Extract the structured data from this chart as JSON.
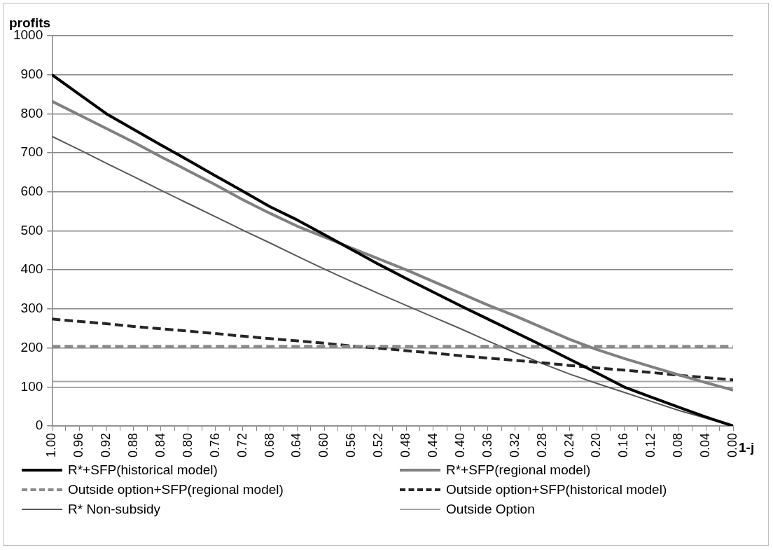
{
  "chart_data": {
    "type": "line",
    "xlabel": "1-j",
    "ylabel": "profits",
    "x": [
      1.0,
      0.96,
      0.92,
      0.88,
      0.84,
      0.8,
      0.76,
      0.72,
      0.68,
      0.64,
      0.6,
      0.56,
      0.52,
      0.48,
      0.44,
      0.4,
      0.36,
      0.32,
      0.28,
      0.24,
      0.2,
      0.16,
      0.12,
      0.08,
      0.04,
      0.0
    ],
    "series": [
      {
        "name": "R*+SFP(historical model)",
        "color": "#000000",
        "line_style": "solid",
        "values": [
          900,
          850,
          800,
          760,
          720,
          681,
          641,
          602,
          562,
          528,
          490,
          452,
          414,
          378,
          343,
          308,
          274,
          240,
          206,
          171,
          136,
          100,
          74,
          48,
          23,
          0
        ]
      },
      {
        "name": "R*+SFP(regional model)",
        "color": "#808080",
        "line_style": "solid",
        "values": [
          832,
          797,
          762,
          727,
          690,
          654,
          618,
          580,
          545,
          512,
          484,
          456,
          428,
          400,
          370,
          340,
          310,
          282,
          252,
          222,
          196,
          173,
          152,
          131,
          111,
          92
        ]
      },
      {
        "name": "Outside option+SFP(regional model)",
        "color": "#8c8c8c",
        "line_style": "dashed",
        "values": [
          204,
          204,
          204,
          204,
          204,
          204,
          204,
          204,
          204,
          204,
          204,
          204,
          204,
          204,
          204,
          204,
          204,
          204,
          204,
          204,
          204,
          204,
          204,
          204,
          204,
          204
        ]
      },
      {
        "name": "Outside option+SFP(historical model)",
        "color": "#262626",
        "line_style": "dashed",
        "values": [
          274,
          268,
          262,
          255,
          249,
          243,
          237,
          230,
          224,
          218,
          212,
          205,
          199,
          193,
          187,
          180,
          174,
          168,
          162,
          155,
          149,
          143,
          137,
          130,
          124,
          118
        ]
      },
      {
        "name": "R* Non-subsidy",
        "color": "#595959",
        "line_style": "solid",
        "values": [
          742,
          708,
          673,
          639,
          604,
          570,
          536,
          502,
          469,
          435,
          402,
          370,
          339,
          309,
          279,
          249,
          218,
          188,
          160,
          133,
          109,
          86,
          63,
          40,
          20,
          0
        ]
      },
      {
        "name": "Outside Option",
        "color": "#a6a6a6",
        "line_style": "solid",
        "values": [
          114,
          114,
          114,
          114,
          114,
          114,
          114,
          114,
          114,
          114,
          114,
          114,
          114,
          114,
          114,
          114,
          114,
          114,
          114,
          114,
          114,
          114,
          114,
          114,
          114,
          114
        ]
      }
    ],
    "xlim": [
      1,
      0
    ],
    "xticks": [
      {
        "value": 1,
        "label": "1.00"
      },
      {
        "value": 0.98,
        "label": null
      },
      {
        "value": 0.96,
        "label": "0.96"
      },
      {
        "value": 0.94,
        "label": null
      },
      {
        "value": 0.92,
        "label": "0.92"
      },
      {
        "value": 0.9,
        "label": null
      },
      {
        "value": 0.88,
        "label": "0.88"
      },
      {
        "value": 0.86,
        "label": null
      },
      {
        "value": 0.84,
        "label": "0.84"
      },
      {
        "value": 0.82,
        "label": null
      },
      {
        "value": 0.8,
        "label": "0.80"
      },
      {
        "value": 0.78,
        "label": null
      },
      {
        "value": 0.76,
        "label": "0.76"
      },
      {
        "value": 0.74,
        "label": null
      },
      {
        "value": 0.72,
        "label": "0.72"
      },
      {
        "value": 0.7,
        "label": null
      },
      {
        "value": 0.68,
        "label": "0.68"
      },
      {
        "value": 0.66,
        "label": null
      },
      {
        "value": 0.64,
        "label": "0.64"
      },
      {
        "value": 0.62,
        "label": null
      },
      {
        "value": 0.6,
        "label": "0.60"
      },
      {
        "value": 0.58,
        "label": null
      },
      {
        "value": 0.56,
        "label": "0.56"
      },
      {
        "value": 0.54,
        "label": null
      },
      {
        "value": 0.52,
        "label": "0.52"
      },
      {
        "value": 0.5,
        "label": null
      },
      {
        "value": 0.48,
        "label": "0.48"
      },
      {
        "value": 0.46,
        "label": null
      },
      {
        "value": 0.44,
        "label": "0.44"
      },
      {
        "value": 0.42,
        "label": null
      },
      {
        "value": 0.4,
        "label": "0.40"
      },
      {
        "value": 0.38,
        "label": null
      },
      {
        "value": 0.36,
        "label": "0.36"
      },
      {
        "value": 0.34,
        "label": null
      },
      {
        "value": 0.32,
        "label": "0.32"
      },
      {
        "value": 0.3,
        "label": null
      },
      {
        "value": 0.28,
        "label": "0.28"
      },
      {
        "value": 0.26,
        "label": null
      },
      {
        "value": 0.24,
        "label": "0.24"
      },
      {
        "value": 0.22,
        "label": null
      },
      {
        "value": 0.2,
        "label": "0.20"
      },
      {
        "value": 0.18,
        "label": null
      },
      {
        "value": 0.16,
        "label": "0.16"
      },
      {
        "value": 0.14,
        "label": null
      },
      {
        "value": 0.12,
        "label": "0.12"
      },
      {
        "value": 0.1,
        "label": null
      },
      {
        "value": 0.08,
        "label": "0.08"
      },
      {
        "value": 0.06,
        "label": null
      },
      {
        "value": 0.04,
        "label": "0.04"
      },
      {
        "value": 0.02,
        "label": null
      },
      {
        "value": 0,
        "label": "0.00"
      }
    ],
    "ylim": [
      0,
      1000
    ],
    "yticks": [
      0,
      100,
      200,
      300,
      400,
      500,
      600,
      700,
      800,
      900,
      1000
    ],
    "grid": "y",
    "legend": "bottom",
    "marker": "none"
  }
}
